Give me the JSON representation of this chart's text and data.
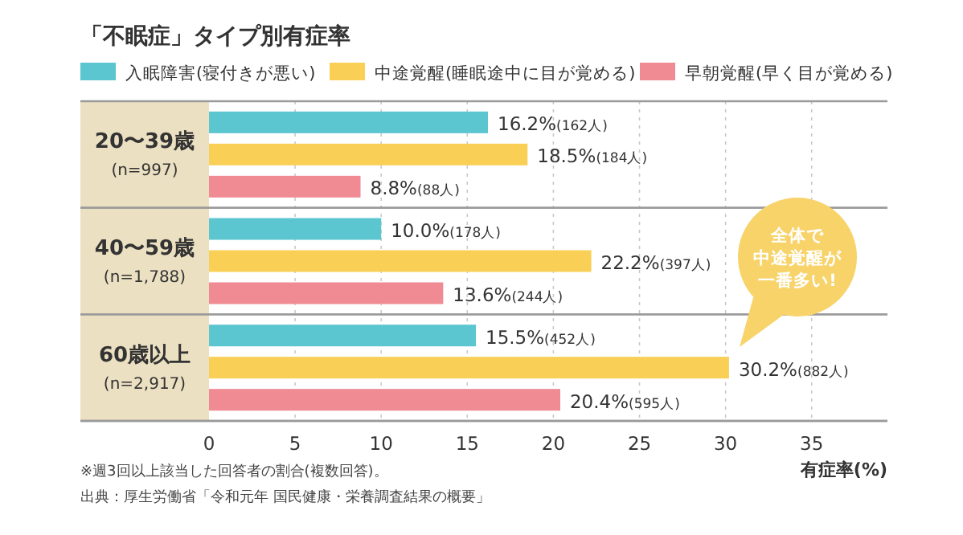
{
  "chart_data": {
    "type": "bar",
    "orientation": "horizontal",
    "title": "「不眠症」タイプ別有症率",
    "xlabel": "有症率(%)",
    "categories": [
      "20〜39歳\n(n=997)",
      "40〜59歳\n(n=1,788)",
      "60歳以上\n(n=2,917)"
    ],
    "series": [
      {
        "name": "入眠障害(寝付きが悪い)",
        "color": "#5bc5d0",
        "values": [
          16.2,
          10.0,
          15.5
        ],
        "value_labels": [
          "16.2%(162人)",
          "10.0%(178人)",
          "15.5%(452人)"
        ]
      },
      {
        "name": "中途覚醒(睡眠途中に目が覚める)",
        "color": "#f9cf55",
        "values": [
          18.5,
          22.2,
          30.2
        ],
        "value_labels": [
          "18.5%(184人)",
          "22.2%(397人)",
          "30.2%(882人)"
        ]
      },
      {
        "name": "早朝覚醒(早く目が覚める)",
        "color": "#f08a93",
        "values": [
          8.8,
          13.6,
          20.4
        ],
        "value_labels": [
          "8.8%(88人)",
          "13.6%(244人)",
          "20.4%(595人)"
        ]
      }
    ],
    "xlim": [
      0,
      39.4
    ],
    "xticks": [
      0,
      5,
      10,
      15,
      20,
      25,
      30,
      35
    ],
    "grid": "x",
    "legend": "top",
    "annotations": [
      "全体で中途覚醒が一番多い!",
      "※週3回以上該当した回答者の割合(複数回答)。",
      "出典：厚生労働省「令和元年 国民健康・栄養調査結果の概要」"
    ]
  }
}
